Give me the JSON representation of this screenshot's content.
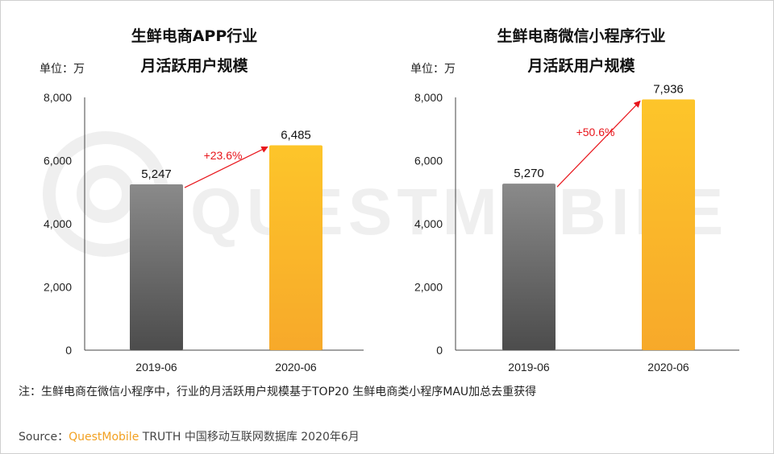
{
  "watermark": "QUESTMOBILE",
  "chart_data": [
    {
      "type": "bar",
      "title": [
        "生鲜电商APP行业",
        "月活跃用户规模"
      ],
      "unit_label": "单位：万",
      "categories": [
        "2019-06",
        "2020-06"
      ],
      "values": [
        5247,
        6485
      ],
      "value_labels": [
        "5,247",
        "6,485"
      ],
      "yticks": [
        "0",
        "2,000",
        "4,000",
        "6,000",
        "8,000"
      ],
      "ylim": [
        0,
        8000
      ],
      "growth_label": "+23.6%",
      "colors": [
        "#7a7a7a",
        "#f9b924"
      ]
    },
    {
      "type": "bar",
      "title": [
        "生鲜电商微信小程序行业",
        "月活跃用户规模"
      ],
      "unit_label": "单位：万",
      "categories": [
        "2019-06",
        "2020-06"
      ],
      "values": [
        5270,
        7936
      ],
      "value_labels": [
        "5,270",
        "7,936"
      ],
      "yticks": [
        "0",
        "2,000",
        "4,000",
        "6,000",
        "8,000"
      ],
      "ylim": [
        0,
        8000
      ],
      "growth_label": "+50.6%",
      "colors": [
        "#7a7a7a",
        "#f9b924"
      ]
    }
  ],
  "note": "注：生鲜电商在微信小程序中，行业的月活跃用户规模基于TOP20 生鲜电商类小程序MAU加总去重获得",
  "source": {
    "prefix": "Source：",
    "brand": "QuestMobile",
    "rest": " TRUTH 中国移动互联网数据库 2020年6月"
  },
  "arrow_color": "#e8151b"
}
